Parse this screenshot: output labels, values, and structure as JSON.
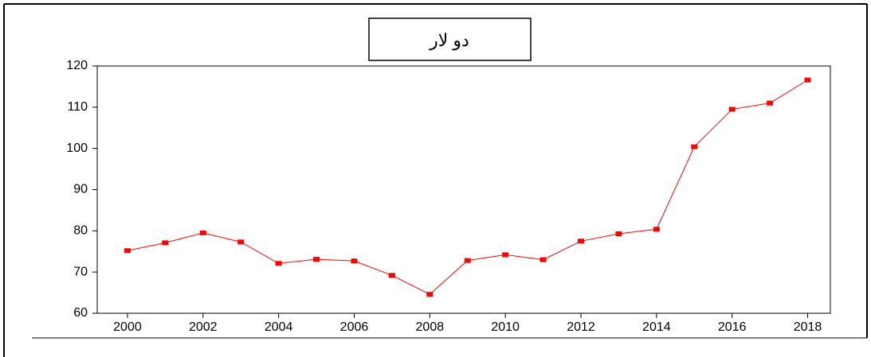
{
  "chart_data": {
    "type": "line",
    "title": "دو لار",
    "x": [
      2000,
      2001,
      2002,
      2003,
      2004,
      2005,
      2006,
      2007,
      2008,
      2009,
      2010,
      2011,
      2012,
      2013,
      2014,
      2015,
      2016,
      2017,
      2018
    ],
    "series": [
      {
        "name": "دو لار",
        "color": "#ff0000",
        "values": [
          75.2,
          77.1,
          79.5,
          77.3,
          72.1,
          73.1,
          72.7,
          69.2,
          64.6,
          72.8,
          74.2,
          73.0,
          77.5,
          79.3,
          80.4,
          100.4,
          109.5,
          111.0,
          116.6
        ]
      }
    ],
    "xlim": [
      1999.2,
      2018.6
    ],
    "xticks": [
      2000,
      2002,
      2004,
      2006,
      2008,
      2010,
      2012,
      2014,
      2016,
      2018
    ],
    "ylim": [
      60,
      120
    ],
    "yticks": [
      60,
      70,
      80,
      90,
      100,
      110,
      120
    ],
    "grid": false
  }
}
